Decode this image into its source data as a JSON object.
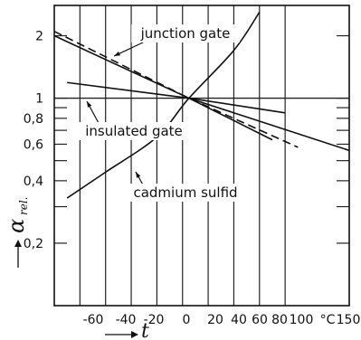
{
  "chart_data": {
    "type": "line",
    "title": "",
    "xlabel": "t",
    "ylabel": "α",
    "ylabel_subscript": "rel.",
    "x_unit": "°C",
    "x_ticks": [
      "-60",
      "-40",
      "-20",
      "0",
      "20",
      "40",
      "60",
      "80",
      "100",
      "150"
    ],
    "y_ticks": [
      "2",
      "1",
      "0,8",
      "0,6",
      "0,4",
      "0,2"
    ],
    "y_scale": "log",
    "xlim": [
      -80,
      150
    ],
    "ylim": [
      0.1,
      2.8
    ],
    "grid": true,
    "series": [
      {
        "name": "junction gate",
        "style": "solid",
        "x": [
          -80,
          25,
          90
        ],
        "y": [
          2.0,
          1.0,
          0.63
        ]
      },
      {
        "name": "junction gate",
        "style": "dashed",
        "x": [
          -80,
          25,
          110
        ],
        "y": [
          2.1,
          1.0,
          0.58
        ]
      },
      {
        "name": "insulated gate",
        "style": "solid",
        "x": [
          -70,
          25,
          100
        ],
        "y": [
          1.19,
          1.0,
          0.85
        ]
      },
      {
        "name": "cadmium sulfid",
        "style": "solid",
        "x": [
          -70,
          -40,
          0,
          25,
          60,
          80
        ],
        "y": [
          0.33,
          0.44,
          0.65,
          1.0,
          1.7,
          2.6
        ]
      },
      {
        "name": "",
        "style": "solid",
        "x": [
          25,
          150
        ],
        "y": [
          1.0,
          0.56
        ]
      }
    ],
    "annotations": [
      {
        "text": "junction gate",
        "x": 5,
        "y": 2.15
      },
      {
        "text": "insulated gate",
        "x": -45,
        "y": 0.71
      },
      {
        "text": "cadmium sulfid",
        "x": 10,
        "y": 0.36
      }
    ]
  }
}
